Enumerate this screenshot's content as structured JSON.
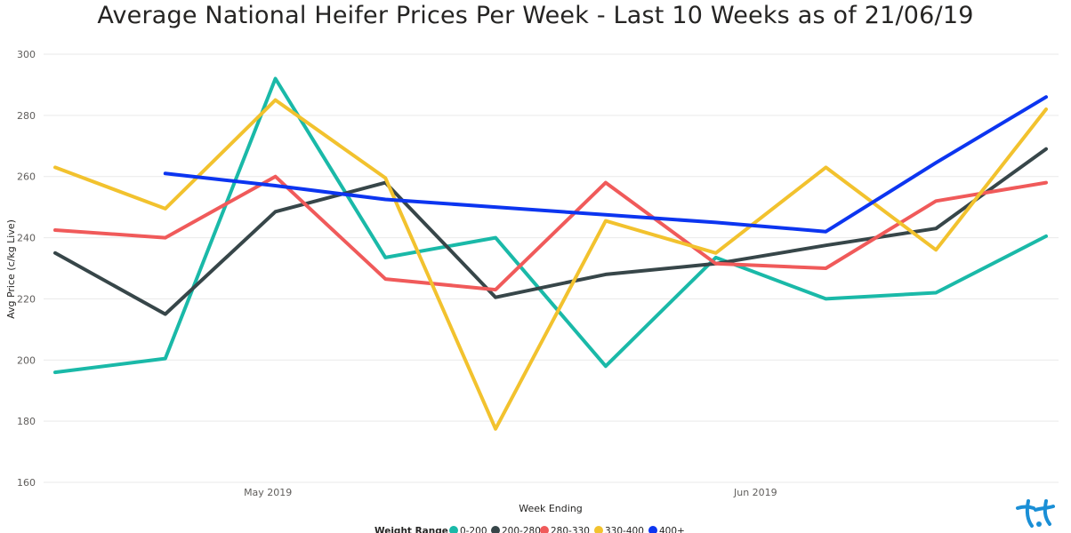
{
  "chart_data": {
    "type": "line",
    "title": "Average National Heifer Prices Per Week - Last 10 Weeks as of 21/06/19",
    "xlabel": "Week Ending",
    "ylabel": "Avg Price (c/kg Live)",
    "ylim": [
      160,
      300
    ],
    "yticks": [
      160,
      180,
      200,
      220,
      240,
      260,
      280,
      300
    ],
    "x": [
      "2019-04-19",
      "2019-04-26",
      "2019-05-03",
      "2019-05-10",
      "2019-05-17",
      "2019-05-24",
      "2019-05-31",
      "2019-06-07",
      "2019-06-14",
      "2019-06-21"
    ],
    "xticks": [
      {
        "label": "May 2019",
        "date": "2019-05-01"
      },
      {
        "label": "Jun 2019",
        "date": "2019-06-01"
      }
    ],
    "grid": true,
    "legend_title": "Weight Range",
    "legend_placement": "bottom",
    "series": [
      {
        "name": "0-200",
        "color": "#1ab9a8",
        "values": [
          196,
          200.5,
          292,
          233.5,
          240,
          198,
          233.5,
          220,
          222,
          240.5
        ]
      },
      {
        "name": "200-280",
        "color": "#374649",
        "values": [
          235,
          215,
          248.5,
          258,
          220.5,
          228,
          231.5,
          237.5,
          243,
          269
        ]
      },
      {
        "name": "280-330",
        "color": "#f05a5a",
        "values": [
          242.5,
          240,
          260,
          226.5,
          223,
          258,
          231.5,
          230,
          252,
          258
        ]
      },
      {
        "name": "330-400",
        "color": "#f2c22e",
        "values": [
          263,
          249.5,
          285,
          259.5,
          177.5,
          245.5,
          235,
          263,
          236,
          282
        ]
      },
      {
        "name": "400+",
        "color": "#0c35f0",
        "values": [
          null,
          261,
          257,
          252.5,
          250,
          247.5,
          245,
          242,
          264.5,
          286
        ]
      }
    ]
  },
  "logo": {
    "icon": "brand-logo-icon",
    "color": "#1a8fd6"
  }
}
